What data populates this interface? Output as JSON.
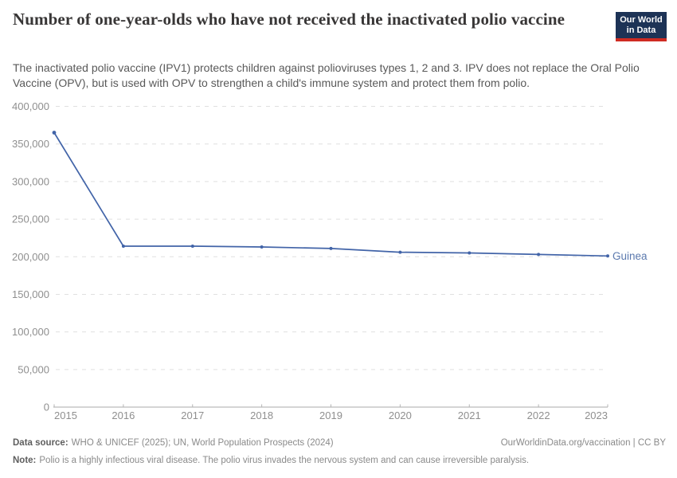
{
  "page": {
    "bg_color": "#ffffff"
  },
  "header": {
    "title": "Number of one-year-olds who have not received the inactivated polio vaccine",
    "subtitle": "The inactivated polio vaccine (IPV1) protects children against polioviruses types 1, 2 and 3. IPV does not replace the Oral Polio Vaccine (OPV), but is used with OPV to strengthen a child's immune system and protect them from polio.",
    "logo": {
      "line1": "Our World",
      "line2": "in Data",
      "bg_color": "#1d3356",
      "stripe_color": "#cf2b22",
      "text_color": "#ffffff"
    }
  },
  "chart_data": {
    "type": "line",
    "title": "Number of one-year-olds who have not received the inactivated polio vaccine",
    "x": [
      2015,
      2016,
      2017,
      2018,
      2019,
      2020,
      2021,
      2022,
      2023
    ],
    "series": [
      {
        "name": "Guinea",
        "color": "#4264a8",
        "label_color": "#5b79ae",
        "values": [
          365000,
          214000,
          214000,
          213000,
          211000,
          206000,
          205000,
          203000,
          201000
        ]
      }
    ],
    "ylim": [
      0,
      400000
    ],
    "ytick_step": 50000,
    "xlabel": "",
    "ylabel": "",
    "grid": "horizontal-dashed",
    "gridline_color": "#e0e0e0",
    "axis_color": "#a8a8a8",
    "tick_color": "#b5b5b5",
    "tick_label_color": "#8f8f8f",
    "legend_position": "line-end-label"
  },
  "footer": {
    "datasource_label": "Data source:",
    "datasource_text": "WHO & UNICEF (2025); UN, World Population Prospects (2024)",
    "link_text": "OurWorldinData.org/vaccination | CC BY",
    "note_label": "Note:",
    "note_text": "Polio is a highly infectious viral disease. The polio virus invades the nervous system and can cause irreversible paralysis."
  }
}
